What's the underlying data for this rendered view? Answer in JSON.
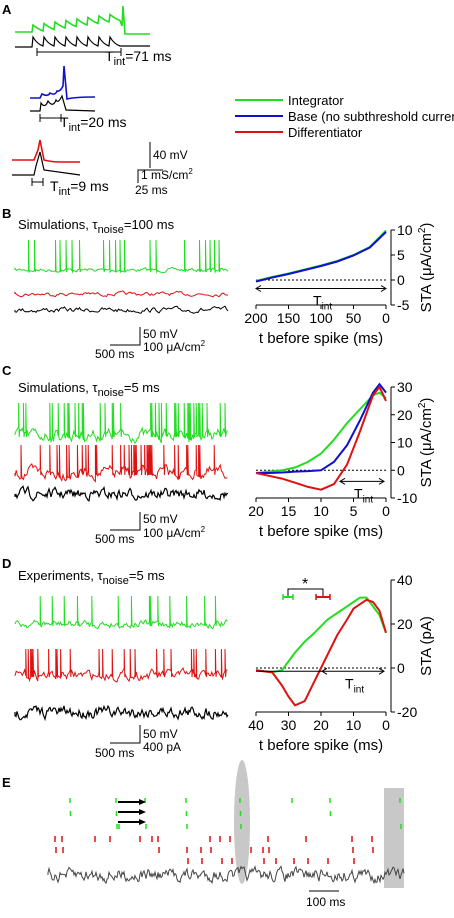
{
  "colors": {
    "integrator": "#22dd22",
    "base": "#1010cc",
    "differentiator": "#dd1111",
    "current": "#000000",
    "shade": "#c8c8c8"
  },
  "panels": {
    "A": {
      "label": "A",
      "tint": [
        {
          "pre": "T",
          "sub": "int",
          "post": "=71 ms"
        },
        {
          "pre": "T",
          "sub": "int",
          "post": "=20 ms"
        },
        {
          "pre": "T",
          "sub": "int",
          "post": "=9 ms"
        }
      ],
      "legend": [
        "Integrator",
        "Base (no subthreshold current)",
        "Differentiator"
      ],
      "scale": {
        "v": "40 mV",
        "i": "1 mS/cm",
        "i_sup": "2",
        "t": "25 ms"
      }
    },
    "B": {
      "label": "B",
      "title_pre": "Simulations, τ",
      "title_sub": "noise",
      "title_post": "=100 ms",
      "scale": {
        "v": "50 mV",
        "i": "100 μA/cm",
        "i_sup": "2",
        "t": "500 ms"
      },
      "tint": {
        "pre": "T",
        "sub": "int"
      }
    },
    "C": {
      "label": "C",
      "title_pre": "Simulations, τ",
      "title_sub": "noise",
      "title_post": "=5 ms",
      "scale": {
        "v": "50 mV",
        "i": "100 μA/cm",
        "i_sup": "2",
        "t": "500 ms"
      },
      "tint": {
        "pre": "T",
        "sub": "int"
      }
    },
    "D": {
      "label": "D",
      "title_pre": "Experiments, τ",
      "title_sub": "noise",
      "title_post": "=5 ms",
      "scale": {
        "v": "50 mV",
        "i": "400 pA",
        "t": "500 ms"
      },
      "tint": {
        "pre": "T",
        "sub": "int"
      },
      "star": "*"
    },
    "E": {
      "label": "E",
      "scale": {
        "t": "100 ms"
      }
    }
  },
  "chart_data": [
    {
      "type": "line",
      "panel": "B",
      "xlabel": "t before spike (ms)",
      "ylabel_pre": "STA (μA/cm",
      "ylabel_sup": "2",
      "ylabel_post": ")",
      "xlim": [
        200,
        0
      ],
      "ylim": [
        -5,
        10
      ],
      "xticks": [
        "200",
        "150",
        "100",
        "50",
        "0"
      ],
      "yticks": [
        "10",
        "5",
        "0",
        "-5"
      ],
      "x": [
        200,
        175,
        150,
        125,
        100,
        75,
        50,
        25,
        0
      ],
      "series": [
        {
          "color": "green",
          "values": [
            -0.2,
            0.6,
            1.3,
            2.1,
            2.9,
            3.8,
            5.0,
            6.6,
            9.9
          ]
        },
        {
          "color": "blue",
          "values": [
            -0.3,
            0.5,
            1.2,
            2.0,
            2.8,
            3.7,
            4.9,
            6.5,
            9.6
          ]
        }
      ]
    },
    {
      "type": "line",
      "panel": "C",
      "xlabel": "t before spike (ms)",
      "ylabel_pre": "STA (μA/cm",
      "ylabel_sup": "2",
      "ylabel_post": ")",
      "xlim": [
        20,
        0
      ],
      "ylim": [
        -10,
        30
      ],
      "xticks": [
        "20",
        "15",
        "10",
        "5",
        "0"
      ],
      "yticks": [
        "30",
        "20",
        "10",
        "0",
        "-10"
      ],
      "x": [
        20,
        18,
        16,
        14,
        12,
        10,
        8,
        6,
        4,
        2,
        1,
        0
      ],
      "series": [
        {
          "color": "green",
          "values": [
            -1,
            -0.5,
            0,
            1,
            3,
            6,
            11,
            17,
            22,
            27,
            28,
            26
          ]
        },
        {
          "color": "blue",
          "values": [
            -1,
            -1,
            -0.8,
            -0.5,
            -0.3,
            0,
            3,
            9,
            18,
            28,
            31,
            28
          ]
        },
        {
          "color": "red",
          "values": [
            -1,
            -2,
            -3,
            -4.5,
            -6,
            -7,
            -5,
            2,
            14,
            27,
            30,
            25
          ]
        }
      ]
    },
    {
      "type": "line",
      "panel": "D",
      "xlabel": "t before spike (ms)",
      "ylabel": "STA (pA)",
      "xlim": [
        40,
        0
      ],
      "ylim": [
        -20,
        40
      ],
      "xticks": [
        "40",
        "30",
        "20",
        "10",
        "0"
      ],
      "yticks": [
        "40",
        "20",
        "0",
        "-20"
      ],
      "x": [
        40,
        35,
        32,
        30,
        28,
        25,
        22,
        20,
        18,
        15,
        12,
        10,
        8,
        6,
        4,
        2,
        0
      ],
      "series": [
        {
          "color": "green",
          "values": [
            -1,
            -2,
            -1,
            3,
            7,
            12,
            16,
            19,
            22,
            25,
            28,
            30,
            32,
            32,
            28,
            24,
            16
          ]
        },
        {
          "color": "red",
          "values": [
            -1,
            -2,
            -8,
            -13,
            -17,
            -15,
            -6,
            0,
            6,
            15,
            22,
            27,
            29,
            31,
            30,
            26,
            16
          ]
        }
      ]
    }
  ]
}
